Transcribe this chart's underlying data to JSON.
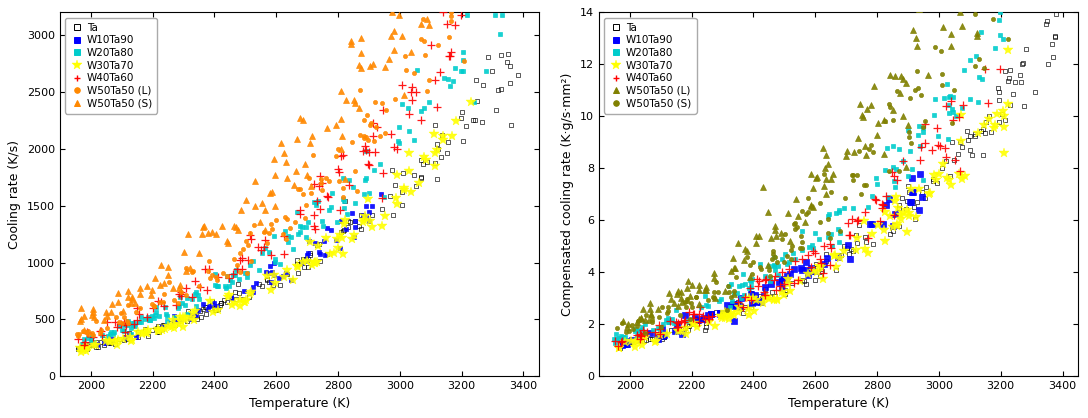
{
  "series_left": [
    {
      "label": "Ta",
      "color": "#000000",
      "marker": "s",
      "filled": false,
      "scale": 1650,
      "T_max": 3400,
      "n": 150
    },
    {
      "label": "W10Ta90",
      "color": "#0000ff",
      "marker": "s",
      "filled": true,
      "scale": 1700,
      "T_max": 2950,
      "n": 80
    },
    {
      "label": "W20Ta80",
      "color": "#00cccc",
      "marker": "s",
      "filled": true,
      "scale": 2100,
      "T_max": 3350,
      "n": 150
    },
    {
      "label": "W30Ta70",
      "color": "#ffff00",
      "marker": "*",
      "filled": true,
      "scale": 1600,
      "T_max": 3250,
      "n": 120
    },
    {
      "label": "W40Ta60",
      "color": "#ff0000",
      "marker": "+",
      "filled": true,
      "scale": 2300,
      "T_max": 3200,
      "n": 110
    },
    {
      "label": "W50Ta50 (L)",
      "color": "#ff8800",
      "marker": "o",
      "filled": true,
      "scale": 2500,
      "T_max": 3350,
      "n": 140
    },
    {
      "label": "W50Ta50 (S)",
      "color": "#ff8800",
      "marker": "^",
      "filled": true,
      "scale": 3200,
      "T_max": 3350,
      "n": 150
    }
  ],
  "series_right": [
    {
      "label": "Ta",
      "color": "#000000",
      "marker": "s",
      "filled": false,
      "scale": 7.8,
      "T_max": 3400,
      "n": 150
    },
    {
      "label": "W10Ta90",
      "color": "#0000ff",
      "marker": "s",
      "filled": true,
      "scale": 8.2,
      "T_max": 2950,
      "n": 80
    },
    {
      "label": "W20Ta80",
      "color": "#00cccc",
      "marker": "s",
      "filled": true,
      "scale": 10.0,
      "T_max": 3350,
      "n": 150
    },
    {
      "label": "W30Ta70",
      "color": "#ffff00",
      "marker": "*",
      "filled": true,
      "scale": 7.5,
      "T_max": 3250,
      "n": 120
    },
    {
      "label": "W40Ta60",
      "color": "#ff0000",
      "marker": "+",
      "filled": true,
      "scale": 8.8,
      "T_max": 3200,
      "n": 110
    },
    {
      "label": "W50Ta50 (L)",
      "color": "#808000",
      "marker": "^",
      "filled": true,
      "scale": 13.5,
      "T_max": 3350,
      "n": 150
    },
    {
      "label": "W50Ta50 (S)",
      "color": "#808000",
      "marker": "o",
      "filled": true,
      "scale": 11.5,
      "T_max": 3400,
      "n": 150
    }
  ],
  "xlabel": "Temperature (K)",
  "ylabel1": "Cooling rate (K/s)",
  "ylabel2": "Compensated cooling rate (K·g/s·mm²)",
  "xlim": [
    1900,
    3450
  ],
  "ylim1": [
    0,
    3200
  ],
  "ylim2": [
    0,
    14
  ],
  "xticks": [
    2000,
    2200,
    2400,
    2600,
    2800,
    3000,
    3200,
    3400
  ],
  "yticks1": [
    0,
    500,
    1000,
    1500,
    2000,
    2500,
    3000
  ],
  "yticks2": [
    0,
    2,
    4,
    6,
    8,
    10,
    12,
    14
  ],
  "T_min": 1950,
  "T_ref": 3000,
  "power": 4.5,
  "fontsize": 9
}
